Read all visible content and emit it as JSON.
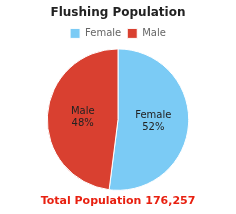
{
  "chart_data": {
    "type": "pie",
    "title": "Flushing Population",
    "categories": [
      "Female",
      "Male"
    ],
    "values": [
      52,
      48
    ],
    "value_labels": [
      "52%",
      "48%"
    ],
    "colors": [
      "#7bcbf5",
      "#d94030"
    ],
    "data_labels": true,
    "legend": "top",
    "annotations": [
      {
        "text": "Total Population 176,257",
        "color": "#e82010"
      }
    ]
  }
}
